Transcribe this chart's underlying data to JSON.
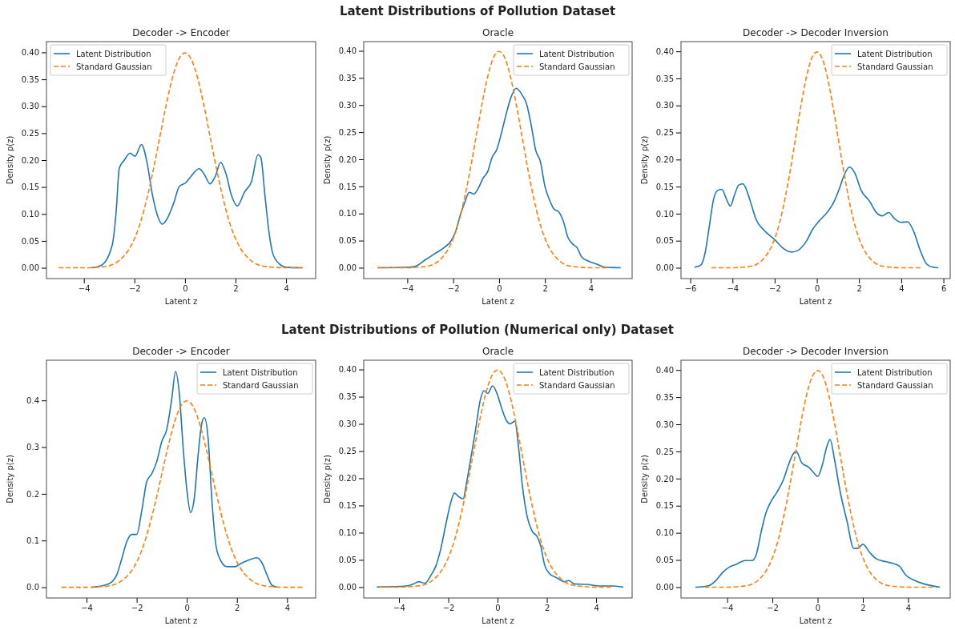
{
  "chart_data": [
    {
      "type": "line",
      "title": "Decoder -> Encoder",
      "xlabel": "Latent z",
      "ylabel": "Density p(z)",
      "annotations": [
        "Latent Distributions of Pollution Dataset"
      ],
      "legend": "top left",
      "xlim": [
        -5.48,
        5.17
      ],
      "ylim": [
        -0.02,
        0.42
      ],
      "xticks": [
        {
          "value": -4,
          "label": "−4"
        },
        {
          "value": -2,
          "label": "−2"
        },
        0,
        2,
        4
      ],
      "yticks": [
        {
          "value": 0,
          "label": "0.00"
        },
        {
          "value": 0.05,
          "label": "0.05"
        },
        {
          "value": 0.1,
          "label": "0.10"
        },
        {
          "value": 0.15,
          "label": "0.15"
        },
        {
          "value": 0.2,
          "label": "0.20"
        },
        {
          "value": 0.25,
          "label": "0.25"
        },
        {
          "value": 0.3,
          "label": "0.30"
        },
        {
          "value": 0.35,
          "label": "0.35"
        },
        {
          "value": 0.4,
          "label": "0.40"
        }
      ],
      "series": [
        {
          "name": "Latent Distribution",
          "color": "#1f77b4",
          "line_style": "solid",
          "x": [
            -3.7,
            -3.3,
            -2.88,
            -2.72,
            -2.6,
            -2.4,
            -2.17,
            -1.98,
            -1.72,
            -1.5,
            -1.29,
            -1.08,
            -0.9,
            -0.71,
            -0.44,
            -0.23,
            0.03,
            0.24,
            0.56,
            0.77,
            0.99,
            1.2,
            1.41,
            1.62,
            1.83,
            2.07,
            2.36,
            2.63,
            2.89,
            3.0,
            3.16,
            3.32,
            3.47,
            3.74,
            4.0,
            4.65
          ],
          "values": [
            0,
            0.005,
            0.042,
            0.106,
            0.185,
            0.2,
            0.213,
            0.207,
            0.229,
            0.195,
            0.136,
            0.096,
            0.081,
            0.091,
            0.121,
            0.151,
            0.158,
            0.17,
            0.184,
            0.173,
            0.156,
            0.17,
            0.196,
            0.175,
            0.136,
            0.115,
            0.141,
            0.16,
            0.21,
            0.205,
            0.136,
            0.067,
            0.027,
            0.007,
            0.001,
            0
          ]
        },
        {
          "name": "Standard Gaussian",
          "color": "#ff7f0e",
          "line_style": "dashed",
          "x": [
            -5,
            -4,
            -3.5,
            -3,
            -2.5,
            -2.25,
            -2,
            -1.75,
            -1.5,
            -1.25,
            -1,
            -0.75,
            -0.5,
            -0.25,
            0,
            0.25,
            0.5,
            0.75,
            1,
            1.25,
            1.5,
            1.75,
            2,
            2.25,
            2.5,
            3,
            3.5,
            4,
            4.65
          ],
          "values": [
            0,
            0,
            0.001,
            0.004,
            0.018,
            0.032,
            0.054,
            0.086,
            0.13,
            0.183,
            0.242,
            0.301,
            0.352,
            0.387,
            0.399,
            0.387,
            0.352,
            0.301,
            0.242,
            0.183,
            0.13,
            0.086,
            0.054,
            0.032,
            0.018,
            0.004,
            0.001,
            0,
            0
          ]
        }
      ]
    },
    {
      "type": "line",
      "title": "Oracle",
      "xlabel": "Latent z",
      "ylabel": "Density p(z)",
      "legend": "top right",
      "xlim": [
        -5.9,
        5.8
      ],
      "ylim": [
        -0.02,
        0.417
      ],
      "xticks": [
        {
          "value": -4,
          "label": "−4"
        },
        {
          "value": -2,
          "label": "−2"
        },
        0,
        2,
        4
      ],
      "yticks": [
        {
          "value": 0,
          "label": "0.00"
        },
        {
          "value": 0.05,
          "label": "0.05"
        },
        {
          "value": 0.1,
          "label": "0.10"
        },
        {
          "value": 0.15,
          "label": "0.15"
        },
        {
          "value": 0.2,
          "label": "0.20"
        },
        {
          "value": 0.25,
          "label": "0.25"
        },
        {
          "value": 0.3,
          "label": "0.30"
        },
        {
          "value": 0.35,
          "label": "0.35"
        },
        {
          "value": 0.4,
          "label": "0.40"
        }
      ],
      "series": [
        {
          "name": "Latent Distribution",
          "color": "#1f77b4",
          "line_style": "solid",
          "x": [
            -5.3,
            -4,
            -3.7,
            -3.2,
            -2.8,
            -2.4,
            -2.1,
            -1.9,
            -1.7,
            -1.5,
            -1.3,
            -1.1,
            -0.9,
            -0.7,
            -0.5,
            -0.3,
            -0.1,
            0.1,
            0.3,
            0.5,
            0.75,
            1.0,
            1.2,
            1.4,
            1.6,
            1.8,
            2.0,
            2.2,
            2.4,
            2.6,
            2.8,
            3.0,
            3.2,
            3.4,
            3.6,
            3.9,
            4.3,
            4.6,
            5.3
          ],
          "values": [
            0,
            0.001,
            0.002,
            0.015,
            0.026,
            0.037,
            0.049,
            0.066,
            0.096,
            0.12,
            0.139,
            0.136,
            0.147,
            0.165,
            0.177,
            0.204,
            0.218,
            0.248,
            0.282,
            0.312,
            0.331,
            0.319,
            0.302,
            0.263,
            0.216,
            0.196,
            0.15,
            0.125,
            0.108,
            0.103,
            0.086,
            0.056,
            0.044,
            0.037,
            0.02,
            0.012,
            0.006,
            0.001,
            0
          ]
        },
        {
          "name": "Standard Gaussian",
          "color": "#ff7f0e",
          "line_style": "dashed",
          "x": [
            -5.3,
            -4,
            -3.5,
            -3,
            -2.5,
            -2.25,
            -2,
            -1.75,
            -1.5,
            -1.25,
            -1,
            -0.75,
            -0.5,
            -0.25,
            0,
            0.25,
            0.5,
            0.75,
            1,
            1.25,
            1.5,
            1.75,
            2,
            2.25,
            2.5,
            3,
            3.5,
            4,
            4.7
          ],
          "values": [
            0,
            0,
            0.001,
            0.004,
            0.018,
            0.032,
            0.054,
            0.086,
            0.13,
            0.183,
            0.242,
            0.301,
            0.352,
            0.387,
            0.399,
            0.387,
            0.352,
            0.301,
            0.242,
            0.183,
            0.13,
            0.086,
            0.054,
            0.032,
            0.018,
            0.004,
            0.001,
            0,
            0
          ]
        }
      ]
    },
    {
      "type": "line",
      "title": "Decoder -> Decoder Inversion",
      "xlabel": "Latent z",
      "ylabel": "Density p(z)",
      "legend": "top right",
      "xlim": [
        -6.44,
        6.32
      ],
      "ylim": [
        -0.02,
        0.418
      ],
      "xticks": [
        {
          "value": -6,
          "label": "−6"
        },
        {
          "value": -4,
          "label": "−4"
        },
        {
          "value": -2,
          "label": "−2"
        },
        0,
        2,
        4,
        6
      ],
      "yticks": [
        {
          "value": 0,
          "label": "0.00"
        },
        {
          "value": 0.05,
          "label": "0.05"
        },
        {
          "value": 0.1,
          "label": "0.10"
        },
        {
          "value": 0.15,
          "label": "0.15"
        },
        {
          "value": 0.2,
          "label": "0.20"
        },
        {
          "value": 0.25,
          "label": "0.25"
        },
        {
          "value": 0.3,
          "label": "0.30"
        },
        {
          "value": 0.35,
          "label": "0.35"
        },
        {
          "value": 0.4,
          "label": "0.40"
        }
      ],
      "series": [
        {
          "name": "Latent Distribution",
          "color": "#1f77b4",
          "line_style": "solid",
          "x": [
            -5.8,
            -5.5,
            -5.3,
            -5.1,
            -4.9,
            -4.7,
            -4.5,
            -4.3,
            -4.1,
            -3.9,
            -3.7,
            -3.5,
            -3.3,
            -3.1,
            -2.9,
            -2.5,
            -2.0,
            -1.6,
            -1.2,
            -0.9,
            -0.5,
            -0.2,
            0.1,
            0.5,
            0.8,
            1.1,
            1.3,
            1.55,
            1.8,
            2.1,
            2.5,
            2.8,
            3.1,
            3.4,
            3.7,
            4.0,
            4.3,
            4.6,
            4.9,
            5.2,
            5.5,
            5.75
          ],
          "values": [
            0.001,
            0.005,
            0.027,
            0.076,
            0.126,
            0.143,
            0.145,
            0.128,
            0.114,
            0.135,
            0.153,
            0.155,
            0.14,
            0.116,
            0.091,
            0.069,
            0.052,
            0.036,
            0.029,
            0.032,
            0.049,
            0.071,
            0.086,
            0.103,
            0.121,
            0.15,
            0.172,
            0.186,
            0.175,
            0.143,
            0.123,
            0.103,
            0.096,
            0.102,
            0.09,
            0.084,
            0.085,
            0.066,
            0.032,
            0.007,
            0.001,
            0
          ]
        },
        {
          "name": "Standard Gaussian",
          "color": "#ff7f0e",
          "line_style": "dashed",
          "x": [
            -5,
            -4,
            -3.5,
            -3,
            -2.5,
            -2.25,
            -2,
            -1.75,
            -1.5,
            -1.25,
            -1,
            -0.75,
            -0.5,
            -0.25,
            0,
            0.25,
            0.5,
            0.75,
            1,
            1.25,
            1.5,
            1.75,
            2,
            2.25,
            2.5,
            3,
            3.5,
            4,
            4.9
          ],
          "values": [
            0,
            0,
            0.001,
            0.004,
            0.018,
            0.032,
            0.054,
            0.086,
            0.13,
            0.183,
            0.242,
            0.301,
            0.352,
            0.387,
            0.399,
            0.387,
            0.352,
            0.301,
            0.242,
            0.183,
            0.13,
            0.086,
            0.054,
            0.032,
            0.018,
            0.004,
            0.001,
            0,
            0
          ]
        }
      ]
    },
    {
      "type": "line",
      "title": "Decoder -> Encoder",
      "xlabel": "Latent z",
      "ylabel": "Density p(z)",
      "annotations": [
        "Latent Distributions of Pollution (Numerical only) Dataset"
      ],
      "legend": "top right",
      "xlim": [
        -5.6,
        5.14
      ],
      "ylim": [
        -0.023,
        0.486
      ],
      "xticks": [
        {
          "value": -4,
          "label": "−4"
        },
        {
          "value": -2,
          "label": "−2"
        },
        0,
        2,
        4
      ],
      "yticks": [
        {
          "value": 0,
          "label": "0.0"
        },
        {
          "value": 0.1,
          "label": "0.1"
        },
        {
          "value": 0.2,
          "label": "0.2"
        },
        {
          "value": 0.3,
          "label": "0.3"
        },
        {
          "value": 0.4,
          "label": "0.4"
        }
      ],
      "series": [
        {
          "name": "Latent Distribution",
          "color": "#1f77b4",
          "line_style": "solid",
          "x": [
            -3.8,
            -3.3,
            -3.0,
            -2.8,
            -2.6,
            -2.4,
            -2.2,
            -2.0,
            -1.8,
            -1.6,
            -1.4,
            -1.2,
            -1.0,
            -0.8,
            -0.6,
            -0.45,
            -0.3,
            -0.15,
            0,
            0.15,
            0.3,
            0.45,
            0.6,
            0.7,
            0.85,
            1.0,
            1.15,
            1.3,
            1.6,
            1.9,
            2.2,
            2.5,
            2.8,
            3.0,
            3.2,
            3.4,
            3.6
          ],
          "values": [
            0,
            0.004,
            0.011,
            0.026,
            0.06,
            0.097,
            0.113,
            0.113,
            0.163,
            0.226,
            0.243,
            0.269,
            0.312,
            0.338,
            0.404,
            0.462,
            0.415,
            0.301,
            0.209,
            0.16,
            0.192,
            0.283,
            0.352,
            0.363,
            0.318,
            0.186,
            0.094,
            0.063,
            0.044,
            0.044,
            0.052,
            0.059,
            0.063,
            0.052,
            0.026,
            0.004,
            0
          ]
        },
        {
          "name": "Standard Gaussian",
          "color": "#ff7f0e",
          "line_style": "dashed",
          "x": [
            -5,
            -4,
            -3.5,
            -3,
            -2.5,
            -2.25,
            -2,
            -1.75,
            -1.5,
            -1.25,
            -1,
            -0.75,
            -0.5,
            -0.25,
            0,
            0.25,
            0.5,
            0.75,
            1,
            1.25,
            1.5,
            1.75,
            2,
            2.25,
            2.5,
            3,
            3.5,
            4,
            4.6
          ],
          "values": [
            0,
            0,
            0.001,
            0.004,
            0.018,
            0.032,
            0.054,
            0.086,
            0.13,
            0.183,
            0.242,
            0.301,
            0.352,
            0.387,
            0.399,
            0.387,
            0.352,
            0.301,
            0.242,
            0.183,
            0.13,
            0.086,
            0.054,
            0.032,
            0.018,
            0.004,
            0.001,
            0,
            0
          ]
        }
      ]
    },
    {
      "type": "line",
      "title": "Oracle",
      "xlabel": "Latent z",
      "ylabel": "Density p(z)",
      "legend": "top right",
      "xlim": [
        -5.43,
        5.46
      ],
      "ylim": [
        -0.02,
        0.417
      ],
      "xticks": [
        {
          "value": -4,
          "label": "−4"
        },
        {
          "value": -2,
          "label": "−2"
        },
        0,
        2,
        4
      ],
      "yticks": [
        {
          "value": 0,
          "label": "0.00"
        },
        {
          "value": 0.05,
          "label": "0.05"
        },
        {
          "value": 0.1,
          "label": "0.10"
        },
        {
          "value": 0.15,
          "label": "0.15"
        },
        {
          "value": 0.2,
          "label": "0.20"
        },
        {
          "value": 0.25,
          "label": "0.25"
        },
        {
          "value": 0.3,
          "label": "0.30"
        },
        {
          "value": 0.35,
          "label": "0.35"
        },
        {
          "value": 0.4,
          "label": "0.40"
        }
      ],
      "series": [
        {
          "name": "Latent Distribution",
          "color": "#1f77b4",
          "line_style": "solid",
          "x": [
            -4.9,
            -3.7,
            -3.4,
            -3.2,
            -2.95,
            -2.7,
            -2.5,
            -2.3,
            -2.1,
            -1.9,
            -1.75,
            -1.6,
            -1.4,
            -1.25,
            -1.1,
            -0.9,
            -0.7,
            -0.55,
            -0.4,
            -0.2,
            0,
            0.15,
            0.35,
            0.5,
            0.7,
            0.85,
            1.0,
            1.2,
            1.4,
            1.6,
            1.75,
            1.9,
            2.1,
            2.4,
            2.7,
            2.9,
            3.1,
            3.6,
            4.2,
            4.6,
            5.1
          ],
          "values": [
            0,
            0.002,
            0.006,
            0.01,
            0.007,
            0.022,
            0.039,
            0.071,
            0.115,
            0.155,
            0.173,
            0.167,
            0.162,
            0.194,
            0.233,
            0.287,
            0.344,
            0.361,
            0.356,
            0.37,
            0.353,
            0.331,
            0.307,
            0.3,
            0.305,
            0.258,
            0.189,
            0.13,
            0.103,
            0.093,
            0.076,
            0.042,
            0.025,
            0.017,
            0.01,
            0.012,
            0.006,
            0.005,
            0.002,
            0.002,
            0
          ]
        },
        {
          "name": "Standard Gaussian",
          "color": "#ff7f0e",
          "line_style": "dashed",
          "x": [
            -4.8,
            -4,
            -3.5,
            -3,
            -2.5,
            -2.25,
            -2,
            -1.75,
            -1.5,
            -1.25,
            -1,
            -0.75,
            -0.5,
            -0.25,
            0,
            0.25,
            0.5,
            0.75,
            1,
            1.25,
            1.5,
            1.75,
            2,
            2.25,
            2.5,
            3,
            3.5,
            4,
            4.6
          ],
          "values": [
            0,
            0,
            0.001,
            0.004,
            0.018,
            0.032,
            0.054,
            0.086,
            0.13,
            0.183,
            0.242,
            0.301,
            0.352,
            0.387,
            0.399,
            0.387,
            0.352,
            0.301,
            0.242,
            0.183,
            0.13,
            0.086,
            0.054,
            0.032,
            0.018,
            0.004,
            0.001,
            0,
            0
          ]
        }
      ]
    },
    {
      "type": "line",
      "title": "Decoder -> Decoder Inversion",
      "xlabel": "Latent z",
      "ylabel": "Density p(z)",
      "legend": "top right",
      "xlim": [
        -6.04,
        5.86
      ],
      "ylim": [
        -0.02,
        0.418
      ],
      "xticks": [
        {
          "value": -4,
          "label": "−4"
        },
        {
          "value": -2,
          "label": "−2"
        },
        0,
        2,
        4
      ],
      "yticks": [
        {
          "value": 0,
          "label": "0.00"
        },
        {
          "value": 0.05,
          "label": "0.05"
        },
        {
          "value": 0.1,
          "label": "0.10"
        },
        {
          "value": 0.15,
          "label": "0.15"
        },
        {
          "value": 0.2,
          "label": "0.20"
        },
        {
          "value": 0.25,
          "label": "0.25"
        },
        {
          "value": 0.3,
          "label": "0.30"
        },
        {
          "value": 0.35,
          "label": "0.35"
        },
        {
          "value": 0.4,
          "label": "0.40"
        }
      ],
      "series": [
        {
          "name": "Latent Distribution",
          "color": "#1f77b4",
          "line_style": "solid",
          "x": [
            -5.4,
            -4.8,
            -4.5,
            -4.2,
            -3.9,
            -3.6,
            -3.2,
            -2.9,
            -2.7,
            -2.5,
            -2.3,
            -2.1,
            -1.8,
            -1.5,
            -1.3,
            -1.1,
            -0.95,
            -0.7,
            -0.4,
            -0.2,
            0,
            0.2,
            0.4,
            0.55,
            0.75,
            1.0,
            1.3,
            1.6,
            1.8,
            2.0,
            2.3,
            2.6,
            3.0,
            3.3,
            3.6,
            3.9,
            4.3,
            4.7,
            5.0,
            5.4
          ],
          "values": [
            0,
            0.003,
            0.012,
            0.027,
            0.037,
            0.042,
            0.049,
            0.049,
            0.062,
            0.101,
            0.135,
            0.155,
            0.175,
            0.199,
            0.224,
            0.244,
            0.25,
            0.229,
            0.221,
            0.212,
            0.204,
            0.224,
            0.258,
            0.272,
            0.234,
            0.175,
            0.121,
            0.071,
            0.072,
            0.079,
            0.064,
            0.052,
            0.047,
            0.044,
            0.039,
            0.022,
            0.012,
            0.006,
            0.003,
            0
          ]
        },
        {
          "name": "Standard Gaussian",
          "color": "#ff7f0e",
          "line_style": "dashed",
          "x": [
            -5,
            -4,
            -3.5,
            -3,
            -2.5,
            -2.25,
            -2,
            -1.75,
            -1.5,
            -1.25,
            -1,
            -0.75,
            -0.5,
            -0.25,
            0,
            0.25,
            0.5,
            0.75,
            1,
            1.25,
            1.5,
            1.75,
            2,
            2.25,
            2.5,
            3,
            3.5,
            4,
            5.1
          ],
          "values": [
            0,
            0,
            0.001,
            0.004,
            0.018,
            0.032,
            0.054,
            0.086,
            0.13,
            0.183,
            0.242,
            0.301,
            0.352,
            0.387,
            0.399,
            0.387,
            0.352,
            0.301,
            0.242,
            0.183,
            0.13,
            0.086,
            0.054,
            0.032,
            0.018,
            0.004,
            0.001,
            0,
            0
          ]
        }
      ]
    }
  ]
}
